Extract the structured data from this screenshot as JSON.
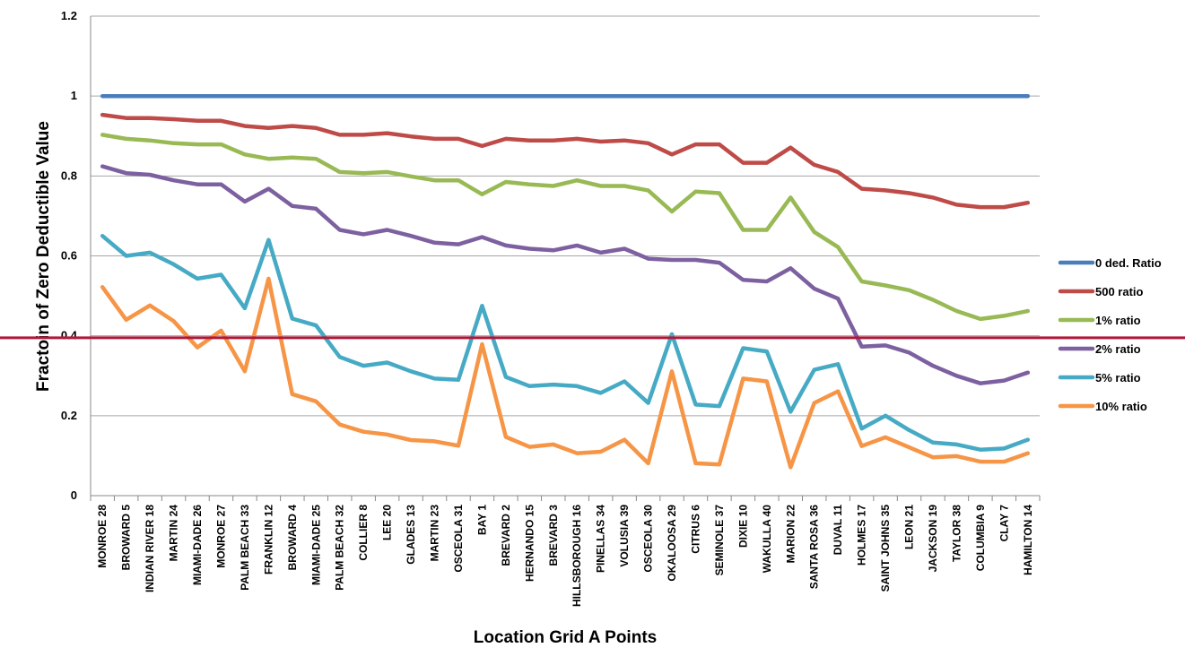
{
  "chart_data": {
    "type": "line",
    "title": "",
    "xlabel": "Location Grid A Points",
    "ylabel": "Fractoin of Zero Deductible Value",
    "ylim": [
      0,
      1.2
    ],
    "yticks": [
      "0",
      "0.2",
      "0.4",
      "0.6",
      "0.8",
      "1",
      "1.2"
    ],
    "grid": true,
    "legend_position": "right",
    "categories": [
      "MONROE 28",
      "BROWARD 5",
      "INDIAN RIVER 18",
      "MARTIN 24",
      "MIAMI-DADE 26",
      "MONROE 27",
      "PALM BEACH 33",
      "FRANKLIN 12",
      "BROWARD 4",
      "MIAMI-DADE 25",
      "PALM BEACH 32",
      "COLLIER 8",
      "LEE 20",
      "GLADES 13",
      "MARTIN 23",
      "OSCEOLA 31",
      "BAY 1",
      "BREVARD 2",
      "HERNANDO 15",
      "BREVARD 3",
      "HILLSBOROUGH 16",
      "PINELLAS 34",
      "VOLUSIA 39",
      "OSCEOLA 30",
      "OKALOOSA 29",
      "CITRUS 6",
      "SEMINOLE 37",
      "DIXIE 10",
      "WAKULLA 40",
      "MARION 22",
      "SANTA ROSA 36",
      "DUVAL 11",
      "HOLMES 17",
      "SAINT JOHNS 35",
      "LEON 21",
      "JACKSON 19",
      "TAYLOR 38",
      "COLUMBIA 9",
      "CLAY 7",
      "HAMILTON 14"
    ],
    "series": [
      {
        "name": "0 ded. Ratio",
        "color": "#4a7ebb",
        "values": [
          1,
          1,
          1,
          1,
          1,
          1,
          1,
          1,
          1,
          1,
          1,
          1,
          1,
          1,
          1,
          1,
          1,
          1,
          1,
          1,
          1,
          1,
          1,
          1,
          1,
          1,
          1,
          1,
          1,
          1,
          1,
          1,
          1,
          1,
          1,
          1,
          1,
          1,
          1,
          1
        ]
      },
      {
        "name": "500 ratio",
        "color": "#be4b48",
        "values": [
          0.953,
          0.945,
          0.945,
          0.942,
          0.938,
          0.938,
          0.925,
          0.92,
          0.925,
          0.92,
          0.903,
          0.903,
          0.907,
          0.899,
          0.893,
          0.893,
          0.875,
          0.893,
          0.889,
          0.889,
          0.893,
          0.886,
          0.889,
          0.882,
          0.854,
          0.879,
          0.879,
          0.833,
          0.833,
          0.871,
          0.828,
          0.81,
          0.768,
          0.764,
          0.757,
          0.746,
          0.728,
          0.722,
          0.722,
          0.733
        ]
      },
      {
        "name": "1% ratio",
        "color": "#98b954",
        "values": [
          0.903,
          0.893,
          0.889,
          0.882,
          0.879,
          0.879,
          0.854,
          0.843,
          0.846,
          0.843,
          0.81,
          0.807,
          0.81,
          0.799,
          0.789,
          0.789,
          0.754,
          0.785,
          0.779,
          0.775,
          0.789,
          0.775,
          0.775,
          0.764,
          0.711,
          0.761,
          0.757,
          0.665,
          0.665,
          0.746,
          0.66,
          0.622,
          0.536,
          0.526,
          0.514,
          0.49,
          0.462,
          0.442,
          0.45,
          0.462
        ]
      },
      {
        "name": "2% ratio",
        "color": "#7d60a0",
        "values": [
          0.824,
          0.807,
          0.803,
          0.789,
          0.779,
          0.779,
          0.736,
          0.768,
          0.725,
          0.718,
          0.665,
          0.654,
          0.665,
          0.65,
          0.633,
          0.629,
          0.647,
          0.626,
          0.618,
          0.614,
          0.626,
          0.608,
          0.618,
          0.593,
          0.59,
          0.59,
          0.583,
          0.54,
          0.536,
          0.569,
          0.518,
          0.493,
          0.373,
          0.376,
          0.358,
          0.325,
          0.3,
          0.281,
          0.288,
          0.308
        ]
      },
      {
        "name": "5% ratio",
        "color": "#46aac5",
        "values": [
          0.65,
          0.6,
          0.608,
          0.579,
          0.543,
          0.553,
          0.469,
          0.64,
          0.443,
          0.426,
          0.347,
          0.325,
          0.333,
          0.311,
          0.293,
          0.29,
          0.475,
          0.297,
          0.274,
          0.278,
          0.274,
          0.257,
          0.286,
          0.232,
          0.404,
          0.228,
          0.224,
          0.369,
          0.361,
          0.21,
          0.315,
          0.329,
          0.168,
          0.2,
          0.164,
          0.133,
          0.128,
          0.115,
          0.118,
          0.14
        ]
      },
      {
        "name": "10% ratio",
        "color": "#f69546",
        "values": [
          0.522,
          0.44,
          0.476,
          0.437,
          0.371,
          0.413,
          0.311,
          0.543,
          0.254,
          0.236,
          0.178,
          0.16,
          0.153,
          0.139,
          0.136,
          0.125,
          0.379,
          0.147,
          0.122,
          0.128,
          0.106,
          0.11,
          0.14,
          0.081,
          0.311,
          0.081,
          0.078,
          0.293,
          0.286,
          0.071,
          0.232,
          0.261,
          0.124,
          0.146,
          0.121,
          0.096,
          0.099,
          0.085,
          0.085,
          0.106
        ]
      }
    ],
    "reference_line": {
      "y": 0.395,
      "color": "#b0183a"
    }
  }
}
